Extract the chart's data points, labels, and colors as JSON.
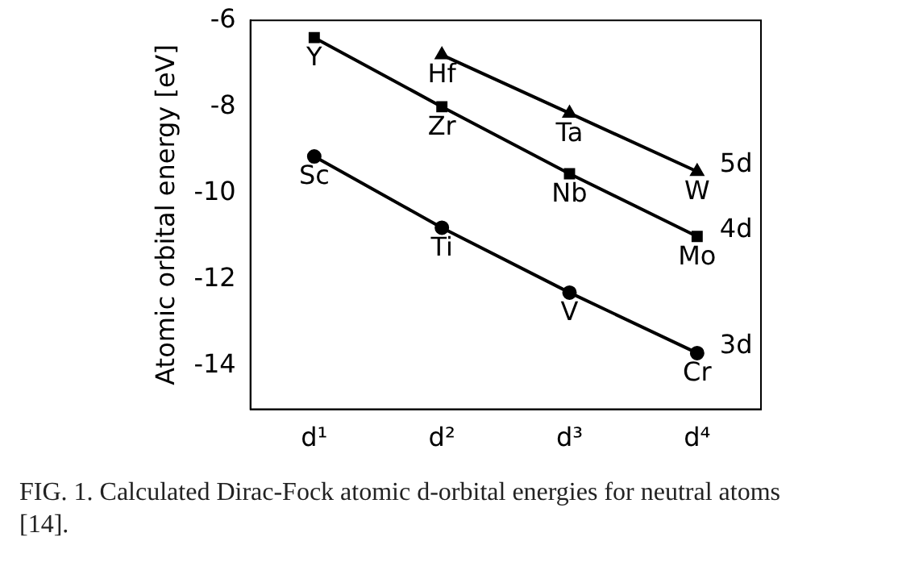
{
  "chart_data": {
    "type": "line",
    "ylabel": "Atomic orbital energy [eV]",
    "categories": [
      "d¹",
      "d²",
      "d³",
      "d⁴"
    ],
    "ylim": [
      -15,
      -6
    ],
    "yticks": [
      -6,
      -8,
      -10,
      -12,
      -14
    ],
    "grid": false,
    "legend": false,
    "line_style": "solid",
    "series": [
      {
        "name": "3d",
        "color": "#000000",
        "marker": "circle",
        "values": [
          -9.15,
          -10.8,
          -12.3,
          -13.7
        ]
      },
      {
        "name": "4d",
        "color": "#000000",
        "marker": "square",
        "values": [
          -6.4,
          -8.0,
          -9.55,
          -11.0
        ]
      },
      {
        "name": "5d",
        "color": "#000000",
        "marker": "triangle",
        "values": [
          null,
          -6.8,
          -8.15,
          -9.5
        ]
      }
    ],
    "annotations": [
      {
        "text": "Sc",
        "x": "d¹",
        "y": -9.15
      },
      {
        "text": "Ti",
        "x": "d²",
        "y": -10.8
      },
      {
        "text": "V",
        "x": "d³",
        "y": -12.3
      },
      {
        "text": "Cr",
        "x": "d⁴",
        "y": -13.7
      },
      {
        "text": "Y",
        "x": "d¹",
        "y": -6.4
      },
      {
        "text": "Zr",
        "x": "d²",
        "y": -8.0
      },
      {
        "text": "Nb",
        "x": "d³",
        "y": -9.55
      },
      {
        "text": "Mo",
        "x": "d⁴",
        "y": -11.0
      },
      {
        "text": "Hf",
        "x": "d²",
        "y": -6.8
      },
      {
        "text": "Ta",
        "x": "d³",
        "y": -8.15
      },
      {
        "text": "W",
        "x": "d⁴",
        "y": -9.5
      },
      "FIG. 1.   Calculated Dirac-Fock atomic d-orbital energies for neutral atoms [14]."
    ]
  }
}
